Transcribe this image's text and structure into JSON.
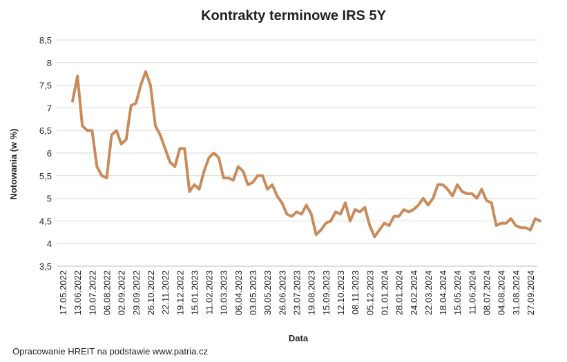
{
  "chart_data": {
    "type": "line",
    "title": "Kontrakty terminowe IRS 5Y",
    "y_label": "Notowania (w %)",
    "x_label": "Data",
    "source": "Opracowanie HREIT na podstawie www.patria.cz",
    "categories": [
      "17.05.2022",
      null,
      null,
      "13.06.2022",
      null,
      null,
      "10.07.2022",
      null,
      null,
      "06.08.2022",
      null,
      null,
      "02.09.2022",
      null,
      null,
      "29.09.2022",
      null,
      null,
      "26.10.2022",
      null,
      null,
      "22.11.2022",
      null,
      null,
      "19.12.2022",
      null,
      null,
      "15.01.2023",
      null,
      null,
      "11.02.2023",
      null,
      null,
      "10.03.2023",
      null,
      null,
      "06.04.2023",
      null,
      null,
      "03.05.2023",
      null,
      null,
      "30.05.2023",
      null,
      null,
      "26.06.2023",
      null,
      null,
      "23.07.2023",
      null,
      null,
      "19.08.2023",
      null,
      null,
      "15.09.2023",
      null,
      null,
      "12.10.2023",
      null,
      null,
      "08.11.2023",
      null,
      null,
      "05.12.2023",
      null,
      null,
      "01.01.2024",
      null,
      null,
      "28.01.2024",
      null,
      null,
      "24.02.2024",
      null,
      null,
      "22.03.2024",
      null,
      null,
      "18.04.2024",
      null,
      null,
      "15.05.2024",
      null,
      null,
      "11.06.2024",
      null,
      null,
      "08.07.2024",
      null,
      null,
      "04.08.2024",
      null,
      null,
      "31.08.2024",
      null,
      null,
      "27.09.2024",
      null,
      null
    ],
    "series": [
      {
        "name": "IRS 5Y",
        "color": "#c98b5b",
        "values": [
          null,
          null,
          7.15,
          7.7,
          6.6,
          6.5,
          6.5,
          5.7,
          5.5,
          5.45,
          6.4,
          6.5,
          6.2,
          6.3,
          7.05,
          7.1,
          7.5,
          7.8,
          7.5,
          6.6,
          6.4,
          6.1,
          5.8,
          5.7,
          6.1,
          6.1,
          5.15,
          5.3,
          5.2,
          5.6,
          5.9,
          6.0,
          5.9,
          5.45,
          5.45,
          5.4,
          5.7,
          5.6,
          5.3,
          5.35,
          5.5,
          5.5,
          5.2,
          5.3,
          5.05,
          4.9,
          4.65,
          4.6,
          4.7,
          4.65,
          4.85,
          4.65,
          4.2,
          4.3,
          4.45,
          4.5,
          4.7,
          4.65,
          4.9,
          4.5,
          4.75,
          4.7,
          4.8,
          4.4,
          4.15,
          4.3,
          4.45,
          4.4,
          4.6,
          4.6,
          4.75,
          4.7,
          4.75,
          4.85,
          5.0,
          4.85,
          5.0,
          5.3,
          5.3,
          5.2,
          5.05,
          5.3,
          5.15,
          5.1,
          5.1,
          5.0,
          5.2,
          4.95,
          4.9,
          4.4,
          4.45,
          4.45,
          4.55,
          4.4,
          4.35,
          4.35,
          4.3,
          4.55,
          4.5
        ]
      }
    ],
    "ylim": [
      3.5,
      8.5
    ],
    "yticks": [
      {
        "value": 3.5,
        "label": "3,5"
      },
      4,
      {
        "value": 4.5,
        "label": "4,5"
      },
      5,
      {
        "value": 5.5,
        "label": "5,5"
      },
      6,
      {
        "value": 6.5,
        "label": "6,5"
      },
      7,
      {
        "value": 7.5,
        "label": "7,5"
      },
      8,
      {
        "value": 8.5,
        "label": "8,5"
      }
    ],
    "grid": true
  }
}
